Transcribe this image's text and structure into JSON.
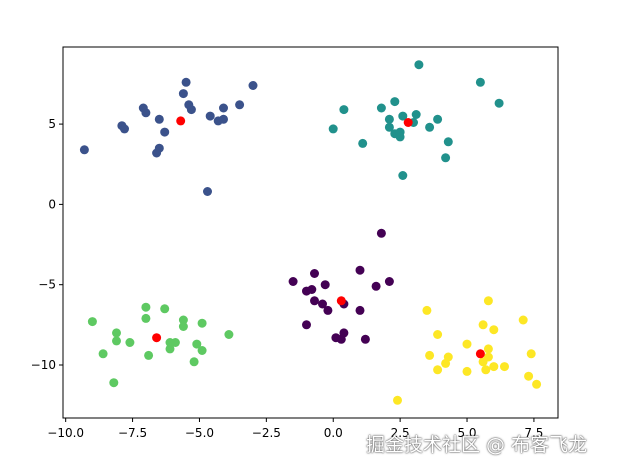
{
  "watermark": "掘金技术社区 @ 布客飞龙",
  "chart_data": {
    "type": "scatter",
    "title": "",
    "xlabel": "",
    "ylabel": "",
    "xlim": [
      -10.1,
      8.4
    ],
    "ylim": [
      -13.3,
      9.8
    ],
    "xticks": [
      -10.0,
      -7.5,
      -5.0,
      -2.5,
      0.0,
      2.5,
      5.0,
      7.5
    ],
    "xtick_labels": [
      "−10.0",
      "−7.5",
      "−5.0",
      "−2.5",
      "0.0",
      "2.5",
      "5.0",
      "7.5"
    ],
    "yticks": [
      -10,
      -5,
      0,
      5
    ],
    "ytick_labels": [
      "−10",
      "−5",
      "0",
      "5"
    ],
    "grid": false,
    "series": [
      {
        "color": "#3b528b",
        "points": [
          [
            -9.3,
            3.4
          ],
          [
            -7.9,
            4.9
          ],
          [
            -7.8,
            4.7
          ],
          [
            -7.1,
            6.0
          ],
          [
            -7.0,
            5.7
          ],
          [
            -6.5,
            5.3
          ],
          [
            -6.5,
            3.5
          ],
          [
            -6.6,
            3.2
          ],
          [
            -6.3,
            4.5
          ],
          [
            -5.6,
            6.9
          ],
          [
            -5.5,
            7.6
          ],
          [
            -5.4,
            6.2
          ],
          [
            -5.3,
            5.9
          ],
          [
            -4.7,
            0.8
          ],
          [
            -4.6,
            5.5
          ],
          [
            -4.3,
            5.2
          ],
          [
            -4.1,
            5.3
          ],
          [
            -4.1,
            6.0
          ],
          [
            -3.5,
            6.2
          ],
          [
            -3.0,
            7.4
          ]
        ]
      },
      {
        "color": "#21918c",
        "points": [
          [
            0.0,
            4.7
          ],
          [
            0.4,
            5.9
          ],
          [
            1.1,
            3.8
          ],
          [
            1.8,
            6.0
          ],
          [
            2.1,
            5.3
          ],
          [
            2.1,
            4.8
          ],
          [
            2.3,
            6.4
          ],
          [
            2.3,
            4.4
          ],
          [
            2.5,
            4.5
          ],
          [
            2.5,
            4.2
          ],
          [
            2.6,
            5.5
          ],
          [
            2.6,
            1.8
          ],
          [
            3.0,
            5.1
          ],
          [
            3.1,
            5.6
          ],
          [
            3.2,
            8.7
          ],
          [
            3.6,
            4.8
          ],
          [
            3.9,
            5.3
          ],
          [
            4.2,
            2.9
          ],
          [
            4.3,
            3.9
          ],
          [
            5.5,
            7.6
          ],
          [
            6.2,
            6.3
          ]
        ]
      },
      {
        "color": "#440154",
        "points": [
          [
            -1.5,
            -4.8
          ],
          [
            -1.0,
            -5.4
          ],
          [
            -0.8,
            -5.3
          ],
          [
            -0.7,
            -4.3
          ],
          [
            -0.7,
            -6.0
          ],
          [
            -0.4,
            -6.2
          ],
          [
            -0.3,
            -5.0
          ],
          [
            -0.2,
            -6.6
          ],
          [
            -1.0,
            -7.5
          ],
          [
            0.1,
            -8.3
          ],
          [
            0.3,
            -8.4
          ],
          [
            0.4,
            -6.2
          ],
          [
            0.4,
            -8.0
          ],
          [
            1.0,
            -4.1
          ],
          [
            1.0,
            -6.6
          ],
          [
            1.2,
            -8.4
          ],
          [
            1.6,
            -5.1
          ],
          [
            1.8,
            -1.8
          ],
          [
            2.1,
            -4.8
          ]
        ]
      },
      {
        "color": "#5ec962",
        "points": [
          [
            -9.0,
            -7.3
          ],
          [
            -8.6,
            -9.3
          ],
          [
            -8.2,
            -11.1
          ],
          [
            -8.1,
            -8.5
          ],
          [
            -8.1,
            -8.0
          ],
          [
            -7.6,
            -8.6
          ],
          [
            -7.0,
            -6.4
          ],
          [
            -7.0,
            -7.1
          ],
          [
            -6.9,
            -9.4
          ],
          [
            -6.3,
            -6.5
          ],
          [
            -6.1,
            -9.0
          ],
          [
            -6.1,
            -8.6
          ],
          [
            -5.9,
            -8.6
          ],
          [
            -5.6,
            -7.2
          ],
          [
            -5.6,
            -7.6
          ],
          [
            -5.2,
            -9.8
          ],
          [
            -5.1,
            -8.7
          ],
          [
            -4.9,
            -7.4
          ],
          [
            -4.9,
            -9.1
          ],
          [
            -3.9,
            -8.1
          ]
        ]
      },
      {
        "color": "#fde725",
        "points": [
          [
            2.4,
            -12.2
          ],
          [
            3.5,
            -6.6
          ],
          [
            3.6,
            -9.4
          ],
          [
            3.9,
            -8.1
          ],
          [
            3.9,
            -10.3
          ],
          [
            4.2,
            -9.9
          ],
          [
            4.3,
            -9.5
          ],
          [
            5.0,
            -8.7
          ],
          [
            5.0,
            -10.4
          ],
          [
            5.6,
            -7.5
          ],
          [
            5.6,
            -9.8
          ],
          [
            5.7,
            -10.3
          ],
          [
            5.8,
            -9.0
          ],
          [
            5.8,
            -6.0
          ],
          [
            5.8,
            -9.5
          ],
          [
            6.0,
            -7.8
          ],
          [
            6.0,
            -10.1
          ],
          [
            6.4,
            -10.1
          ],
          [
            7.1,
            -7.2
          ],
          [
            7.3,
            -10.7
          ],
          [
            7.4,
            -9.3
          ],
          [
            7.6,
            -11.2
          ]
        ]
      },
      {
        "color": "#ff0000",
        "points": [
          [
            -5.7,
            5.2
          ],
          [
            2.8,
            5.1
          ],
          [
            0.3,
            -6.0
          ],
          [
            -6.6,
            -8.3
          ],
          [
            5.5,
            -9.3
          ]
        ]
      }
    ]
  }
}
